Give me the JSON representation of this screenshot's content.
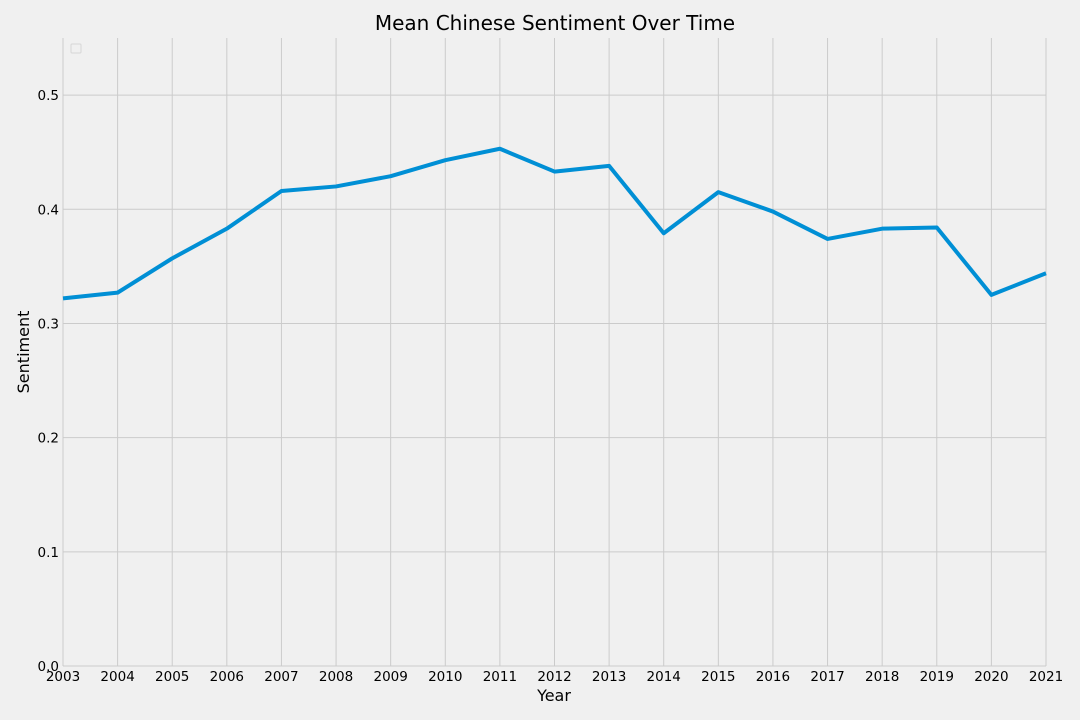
{
  "chart_data": {
    "type": "line",
    "title": "Mean Chinese Sentiment Over Time",
    "xlabel": "Year",
    "ylabel": "Sentiment",
    "x": [
      "2003",
      "2004",
      "2005",
      "2006",
      "2007",
      "2008",
      "2009",
      "2010",
      "2011",
      "2012",
      "2013",
      "2014",
      "2015",
      "2016",
      "2017",
      "2018",
      "2019",
      "2020",
      "2021"
    ],
    "series": [
      {
        "values": [
          0.322,
          0.327,
          0.357,
          0.383,
          0.416,
          0.42,
          0.429,
          0.443,
          0.453,
          0.433,
          0.438,
          0.379,
          0.415,
          0.398,
          0.374,
          0.383,
          0.384,
          0.325,
          0.344
        ],
        "color": "#008fd5"
      }
    ],
    "xlim": [
      2003,
      2021
    ],
    "ylim": [
      0.0,
      0.55
    ],
    "yticks": [
      "0.0",
      "0.1",
      "0.2",
      "0.3",
      "0.4",
      "0.5"
    ],
    "grid": true,
    "legend": "top-left",
    "background": "#f0f0f0",
    "grid_color": "#cbcbcb"
  }
}
